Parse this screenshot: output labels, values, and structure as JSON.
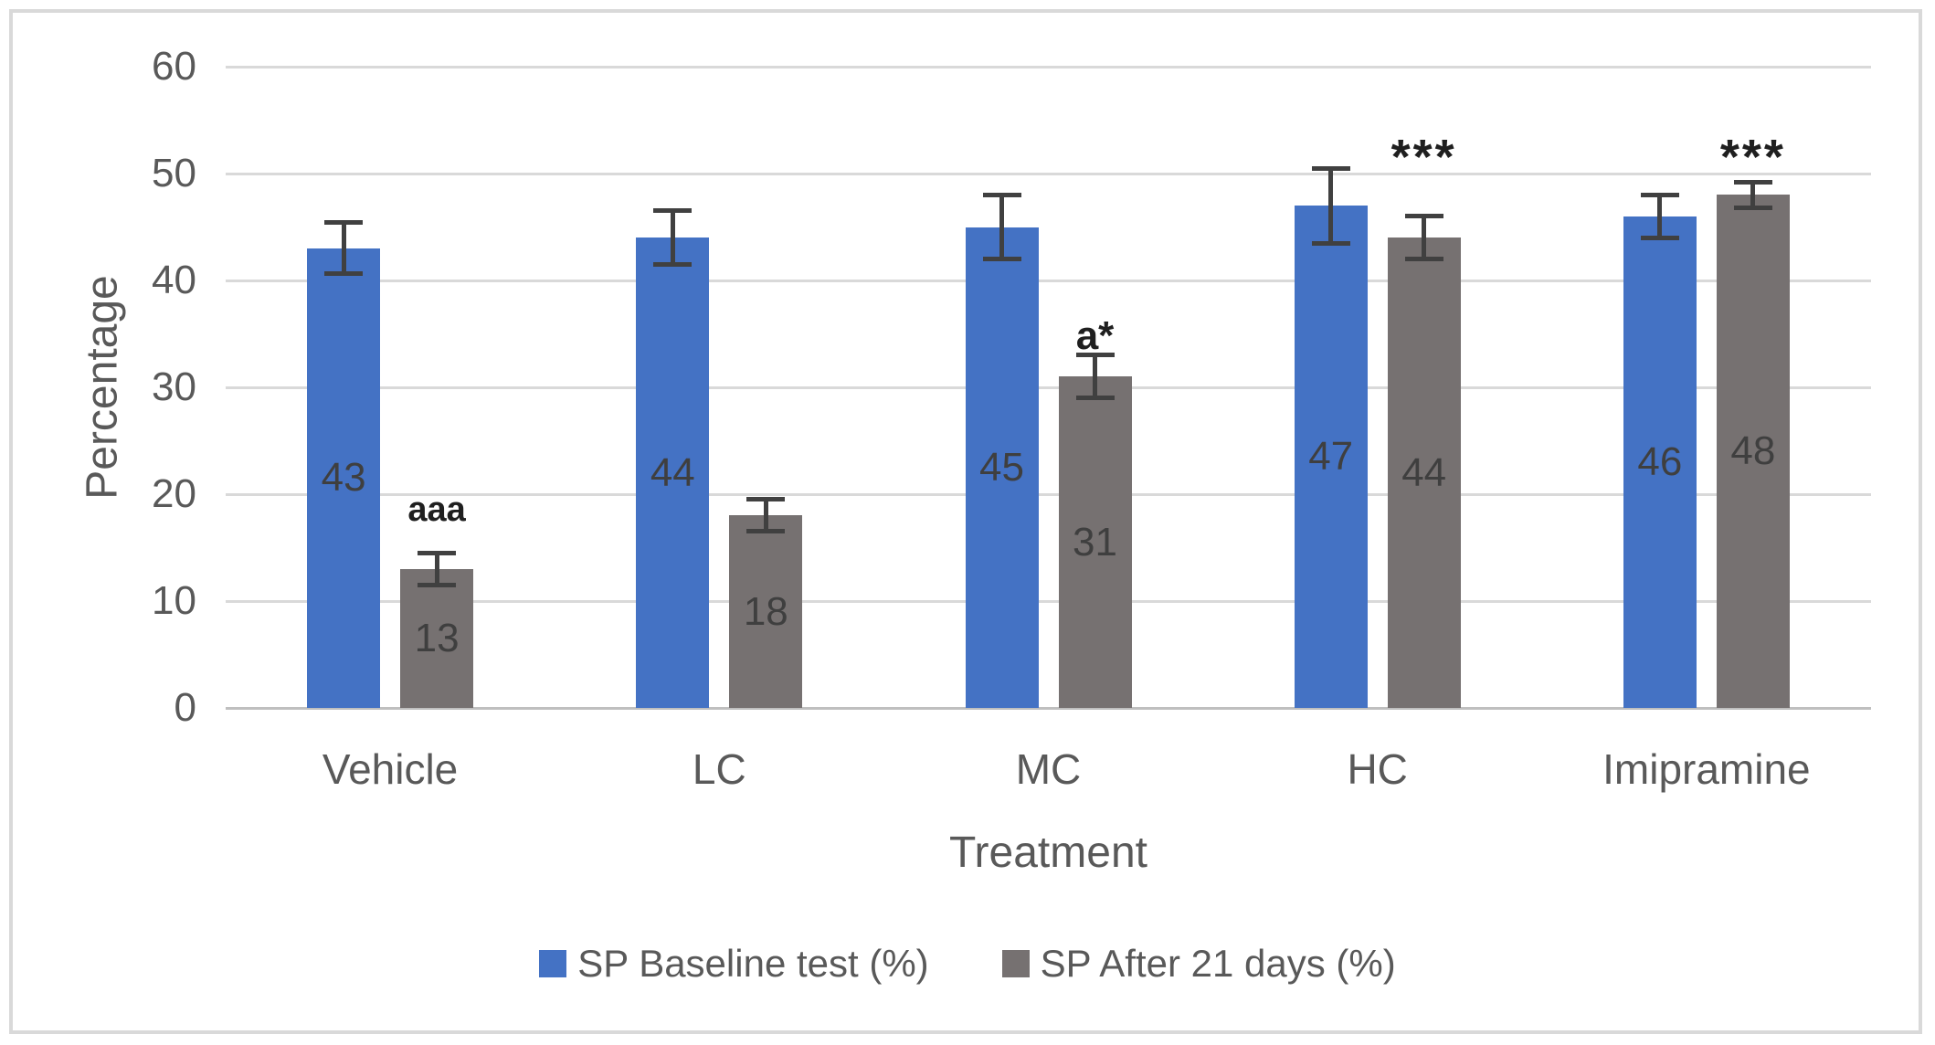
{
  "chart_data": {
    "type": "bar",
    "title": "",
    "xlabel": "Treatment",
    "ylabel": "Percentage",
    "ylim": [
      0,
      60
    ],
    "yticks": [
      0,
      10,
      20,
      30,
      40,
      50,
      60
    ],
    "grid": true,
    "legend_position": "bottom",
    "categories": [
      "Vehicle",
      "LC",
      "MC",
      "HC",
      "Imipramine"
    ],
    "series": [
      {
        "name": "SP Baseline test (%)",
        "color": "#4472C4",
        "values": [
          43,
          44,
          45,
          47,
          46
        ],
        "errors": [
          2.4,
          2.5,
          3.0,
          3.5,
          2.0
        ]
      },
      {
        "name": "SP After 21 days (%)",
        "color": "#767171",
        "values": [
          13,
          18,
          31,
          44,
          48
        ],
        "errors": [
          1.5,
          1.5,
          2.0,
          2.0,
          1.2
        ]
      }
    ],
    "annotations": [
      {
        "category": "Vehicle",
        "series": 1,
        "text": "aaa",
        "y": 18.5,
        "size": "small"
      },
      {
        "category": "MC",
        "series": 1,
        "text": "a*",
        "y": 34.8,
        "size": "medium"
      },
      {
        "category": "HC",
        "series": 1,
        "text": "***",
        "y": 51.5,
        "size": "large"
      },
      {
        "category": "Imipramine",
        "series": 1,
        "text": "***",
        "y": 51.5,
        "size": "large"
      }
    ],
    "colors": {
      "grid": "#D9D9D9",
      "axis": "#BFBFBF",
      "text": "#595959",
      "value_label": "#3F3F3F",
      "error_bar": "#404040",
      "annotation": "#1F1F1F",
      "frame": "#D9D9D9"
    }
  }
}
